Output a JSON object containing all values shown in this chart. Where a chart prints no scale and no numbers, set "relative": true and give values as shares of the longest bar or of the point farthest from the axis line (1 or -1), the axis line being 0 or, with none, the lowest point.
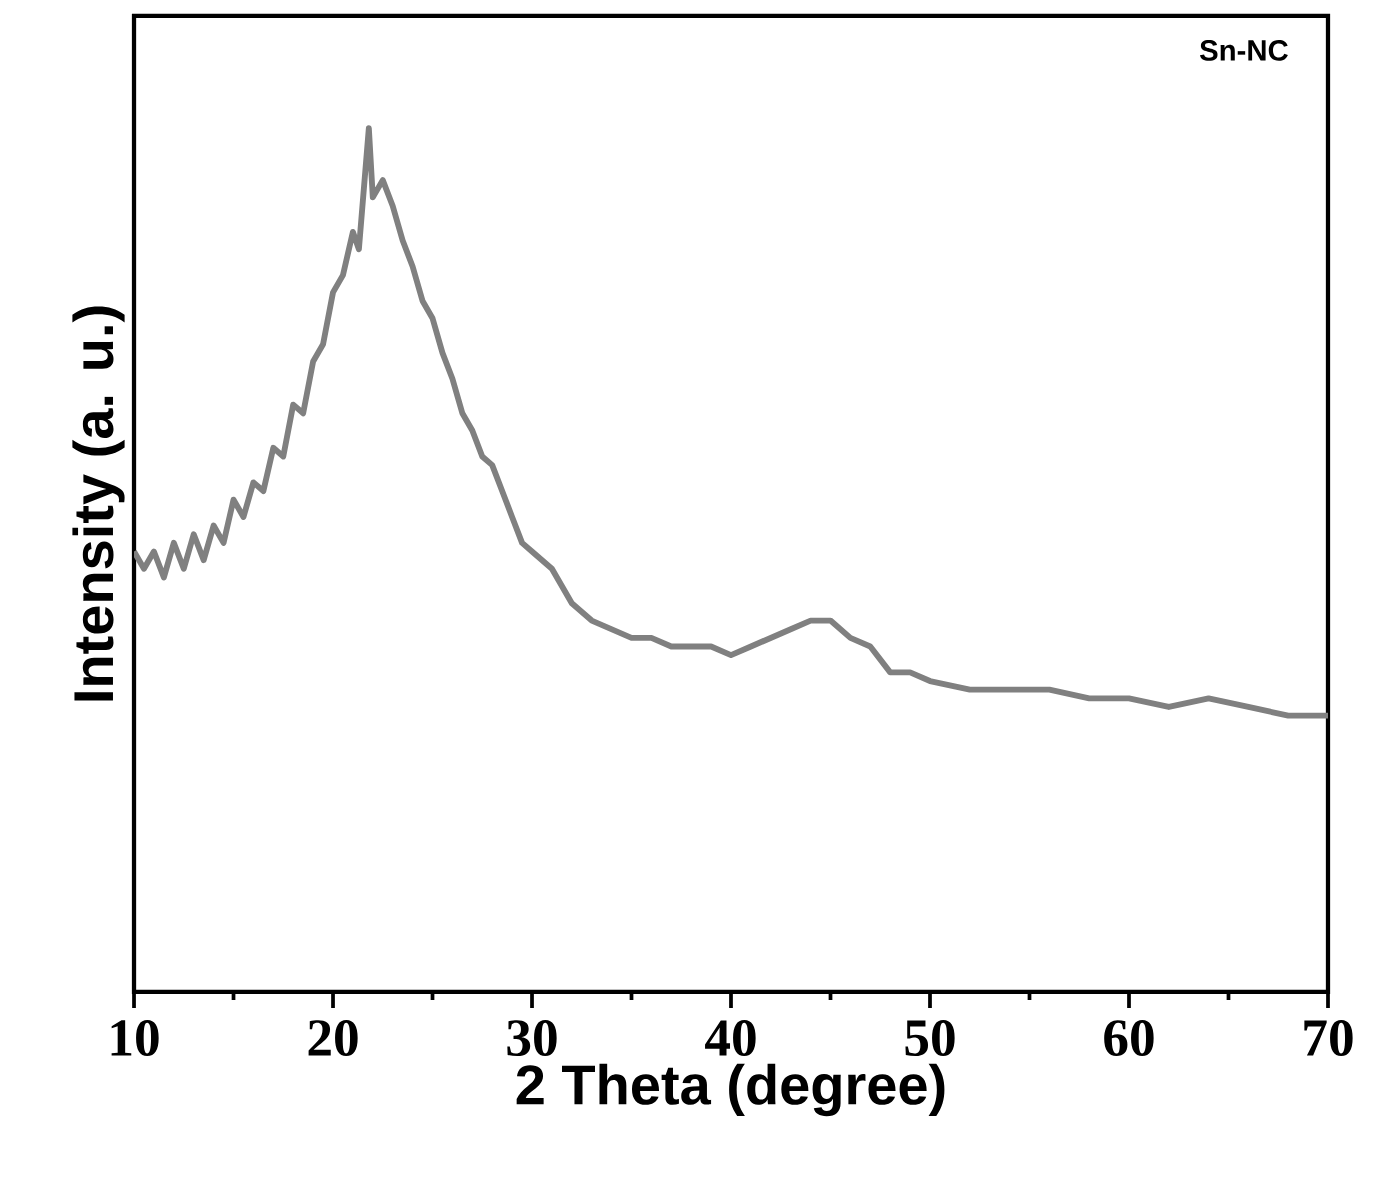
{
  "chart_data": {
    "type": "line",
    "relative": true,
    "xlabel": "2 Theta (degree)",
    "ylabel": "Intensity (a. u.)",
    "annotations": [
      "Sn-NC"
    ],
    "xlim": [
      10,
      70
    ],
    "xticks": [
      10,
      20,
      30,
      40,
      50,
      60,
      70
    ],
    "tick_labels": "x",
    "series": [
      {
        "color": "#808080",
        "x": [
          10,
          10.5,
          11,
          11.5,
          12,
          12.5,
          13,
          13.5,
          14,
          14.5,
          15,
          15.5,
          16,
          16.5,
          17,
          17.5,
          18,
          18.5,
          19,
          19.5,
          20,
          20.5,
          21,
          21.3,
          21.8,
          22,
          22.5,
          23,
          23.5,
          24,
          24.5,
          25,
          25.5,
          26,
          26.5,
          27,
          27.5,
          28,
          28.5,
          29,
          29.5,
          30,
          31,
          32,
          33,
          34,
          35,
          36,
          37,
          38,
          39,
          40,
          41,
          42,
          43,
          44,
          45,
          46,
          47,
          48,
          49,
          50,
          52,
          54,
          56,
          58,
          60,
          62,
          64,
          66,
          68,
          70
        ],
        "values": [
          0.51,
          0.49,
          0.51,
          0.48,
          0.52,
          0.49,
          0.53,
          0.5,
          0.54,
          0.52,
          0.57,
          0.55,
          0.59,
          0.58,
          0.63,
          0.62,
          0.68,
          0.67,
          0.73,
          0.75,
          0.81,
          0.83,
          0.88,
          0.86,
          1,
          0.92,
          0.94,
          0.91,
          0.87,
          0.84,
          0.8,
          0.78,
          0.74,
          0.71,
          0.67,
          0.65,
          0.62,
          0.61,
          0.58,
          0.55,
          0.52,
          0.51,
          0.49,
          0.45,
          0.43,
          0.42,
          0.41,
          0.41,
          0.4,
          0.4,
          0.4,
          0.39,
          0.4,
          0.41,
          0.42,
          0.43,
          0.43,
          0.41,
          0.4,
          0.37,
          0.37,
          0.36,
          0.35,
          0.35,
          0.35,
          0.34,
          0.34,
          0.33,
          0.34,
          0.33,
          0.32,
          0.32
        ]
      }
    ]
  }
}
